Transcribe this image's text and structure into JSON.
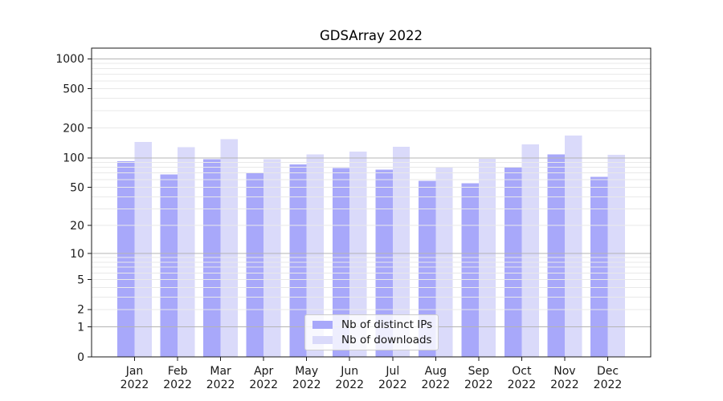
{
  "chart_data": {
    "type": "bar",
    "title": "GDSArray 2022",
    "categories": [
      "Jan\n2022",
      "Feb\n2022",
      "Mar\n2022",
      "Apr\n2022",
      "May\n2022",
      "Jun\n2022",
      "Jul\n2022",
      "Aug\n2022",
      "Sep\n2022",
      "Oct\n2022",
      "Nov\n2022",
      "Dec\n2022"
    ],
    "series": [
      {
        "name": "Nb of distinct IPs",
        "color": "#a8a8fa",
        "values": [
          92,
          68,
          97,
          71,
          86,
          79,
          76,
          58,
          55,
          81,
          108,
          64
        ]
      },
      {
        "name": "Nb of downloads",
        "color": "#dadafa",
        "values": [
          145,
          128,
          154,
          97,
          108,
          116,
          130,
          80,
          98,
          137,
          168,
          107
        ]
      }
    ],
    "xlabel": "",
    "ylabel": "",
    "yscale": "log1p",
    "ylim": [
      0,
      1283
    ],
    "yticks": [
      0,
      1,
      2,
      5,
      10,
      20,
      50,
      100,
      200,
      500,
      1000
    ],
    "grid": {
      "major_lines": [
        1,
        10,
        100,
        1000
      ],
      "minor_lines": [
        2,
        3,
        4,
        5,
        6,
        7,
        8,
        9,
        20,
        30,
        40,
        50,
        60,
        70,
        80,
        90,
        200,
        300,
        400,
        500,
        600,
        700,
        800,
        900
      ],
      "major_color": "#b4b4b4",
      "minor_color": "#e9e9e9"
    },
    "axis_color": "#1a1a1a",
    "legend": {
      "position": "lower center"
    }
  }
}
